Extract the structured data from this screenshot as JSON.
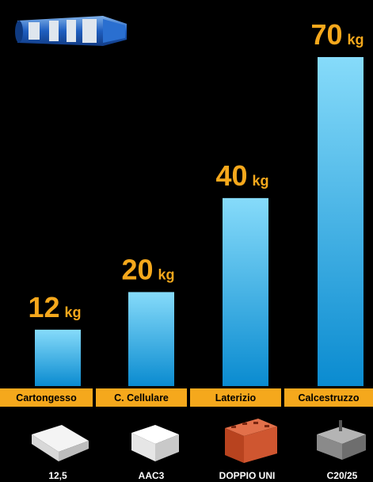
{
  "chart_data": {
    "type": "bar",
    "categories": [
      "Cartongesso",
      "C. Cellulare",
      "Laterizio",
      "Calcestruzzo"
    ],
    "values": [
      12,
      20,
      40,
      70
    ],
    "unit": "kg",
    "sublabels": [
      "12,5",
      "AAC3",
      "DOPPIO UNI",
      "C20/25"
    ],
    "gradient": [
      "#86dbfa",
      "#0a8bd0"
    ],
    "label_color": "#f5a81c"
  }
}
